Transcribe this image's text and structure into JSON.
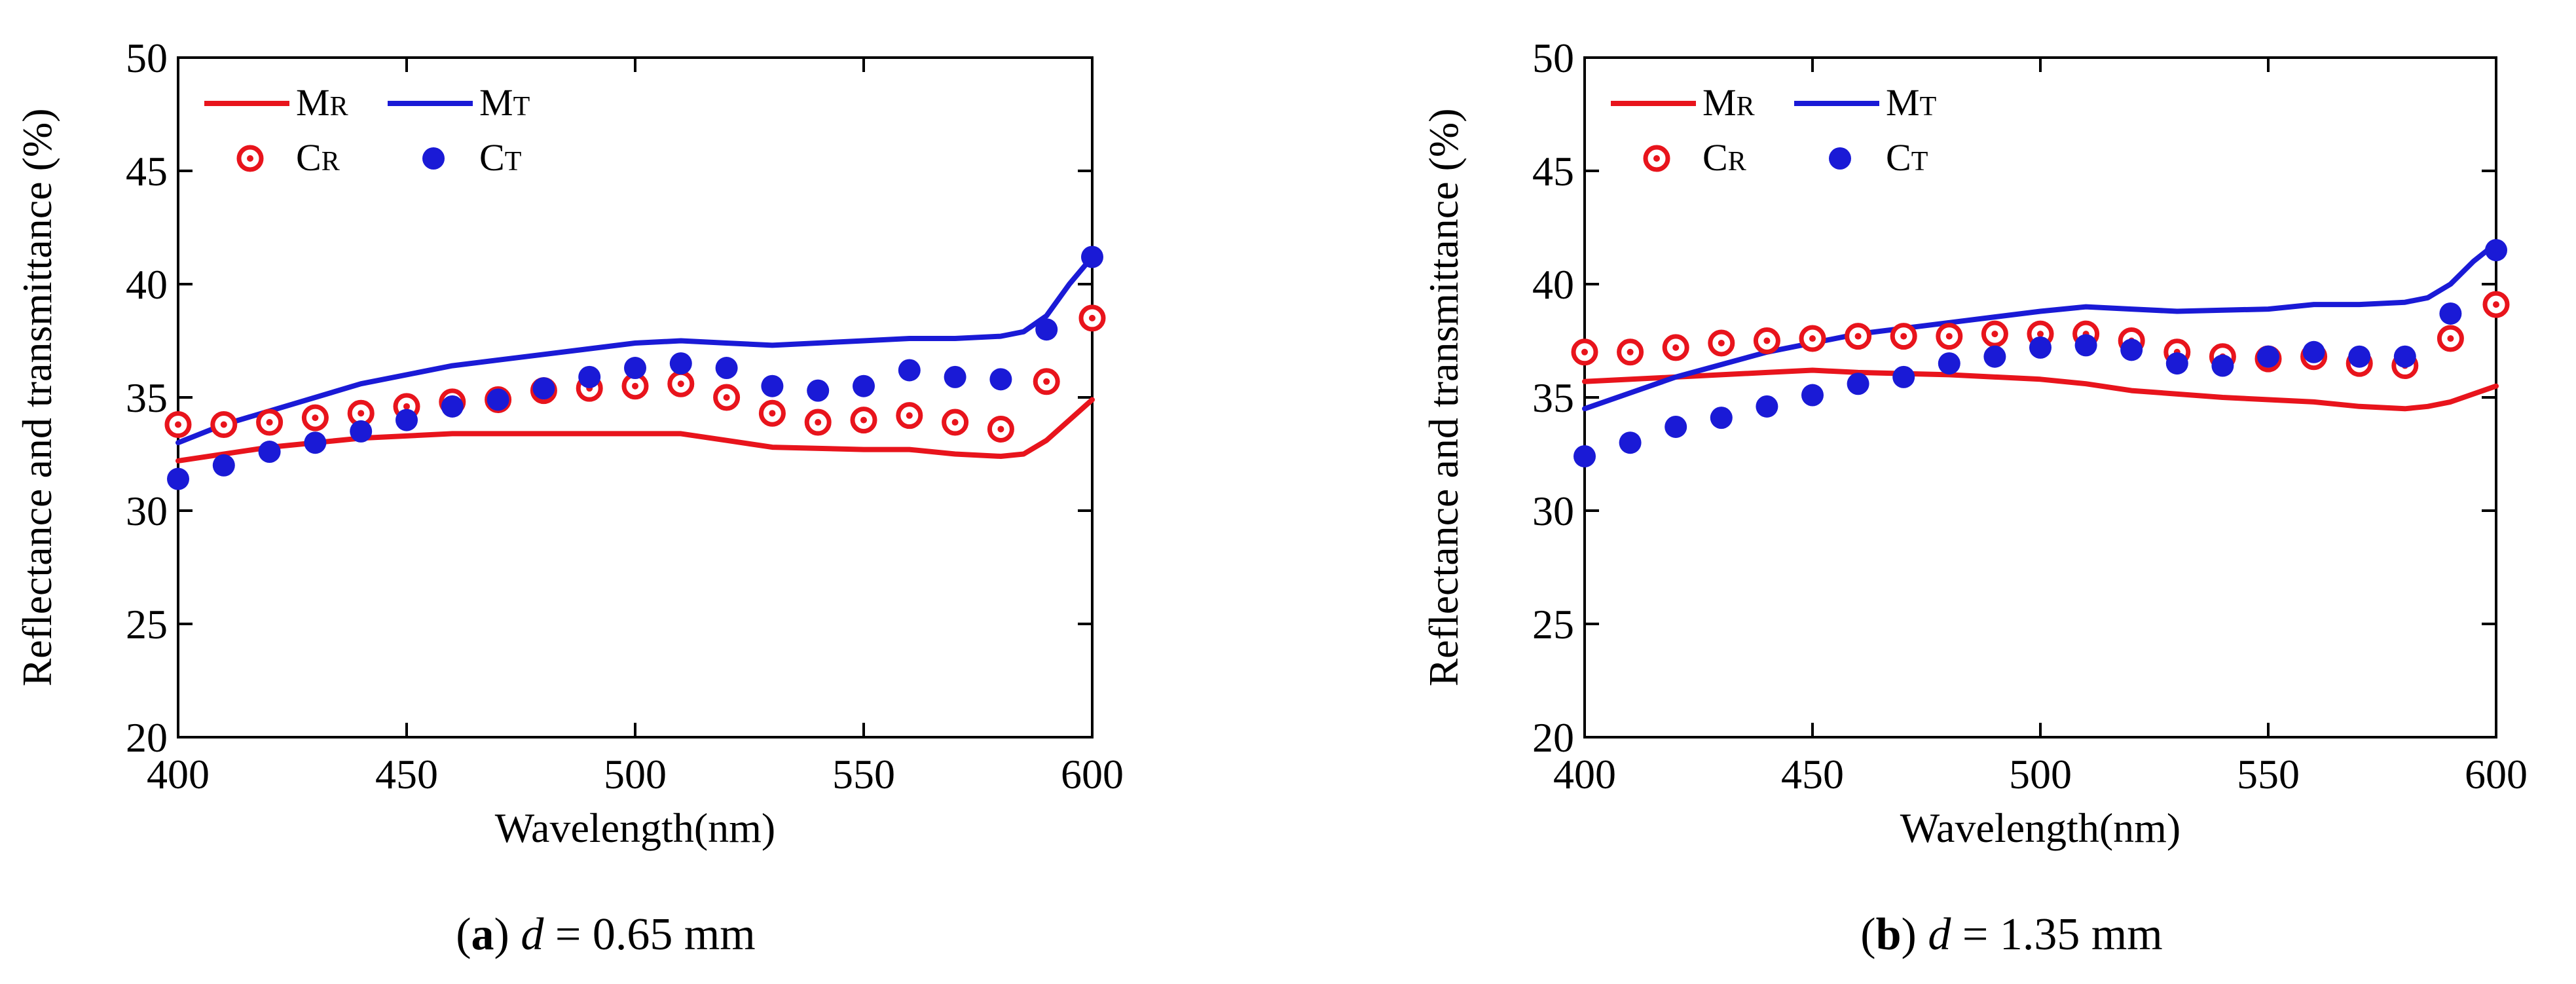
{
  "chart_data": [
    {
      "type": "line",
      "caption": {
        "label": "a",
        "variable": "d",
        "equals": " = ",
        "value": "0.65 mm"
      },
      "xlabel": "Wavelength(nm)",
      "ylabel": "Reflectance and transmittance (%)",
      "xlim": [
        400,
        600
      ],
      "ylim": [
        20,
        50
      ],
      "xticks": [
        400,
        450,
        500,
        550,
        600
      ],
      "yticks": [
        20,
        25,
        30,
        35,
        40,
        45,
        50
      ],
      "legend_position": "top-left",
      "series": [
        {
          "id": "MR",
          "main": "M",
          "sub": "R",
          "kind": "line",
          "color": "#e8141c",
          "x": [
            400,
            420,
            440,
            460,
            480,
            500,
            510,
            520,
            530,
            550,
            560,
            570,
            580,
            585,
            590,
            600
          ],
          "y": [
            32.2,
            32.8,
            33.2,
            33.4,
            33.4,
            33.4,
            33.4,
            33.1,
            32.8,
            32.7,
            32.7,
            32.5,
            32.4,
            32.5,
            33.1,
            34.9
          ]
        },
        {
          "id": "MT",
          "main": "M",
          "sub": "T",
          "kind": "line",
          "color": "#1a1ad6",
          "x": [
            400,
            410,
            420,
            440,
            460,
            480,
            500,
            510,
            520,
            530,
            550,
            560,
            570,
            580,
            585,
            590,
            595,
            600
          ],
          "y": [
            33.0,
            33.8,
            34.4,
            35.6,
            36.4,
            36.9,
            37.4,
            37.5,
            37.4,
            37.3,
            37.5,
            37.6,
            37.6,
            37.7,
            37.9,
            38.6,
            40.0,
            41.2
          ]
        },
        {
          "id": "CR",
          "main": "C",
          "sub": "R",
          "kind": "ring",
          "color": "#e8141c",
          "x": [
            400,
            410,
            420,
            430,
            440,
            450,
            460,
            470,
            480,
            490,
            500,
            510,
            520,
            530,
            540,
            550,
            560,
            570,
            580,
            590,
            600
          ],
          "y": [
            33.8,
            33.8,
            33.9,
            34.1,
            34.3,
            34.6,
            34.8,
            34.9,
            35.3,
            35.4,
            35.5,
            35.6,
            35.0,
            34.3,
            33.9,
            34.0,
            34.2,
            33.9,
            33.6,
            35.7,
            38.5
          ]
        },
        {
          "id": "CT",
          "main": "C",
          "sub": "T",
          "kind": "dot",
          "color": "#1a1ad6",
          "x": [
            400,
            410,
            420,
            430,
            440,
            450,
            460,
            470,
            480,
            490,
            500,
            510,
            520,
            530,
            540,
            550,
            560,
            570,
            580,
            590,
            600
          ],
          "y": [
            31.4,
            32.0,
            32.6,
            33.0,
            33.5,
            34.0,
            34.6,
            34.9,
            35.4,
            35.9,
            36.3,
            36.5,
            36.3,
            35.5,
            35.3,
            35.5,
            36.2,
            35.9,
            35.8,
            38.0,
            41.2
          ]
        }
      ]
    },
    {
      "type": "line",
      "caption": {
        "label": "b",
        "variable": "d",
        "equals": " = ",
        "value": "1.35 mm"
      },
      "xlabel": "Wavelength(nm)",
      "ylabel": "Reflectance and transmittance (%)",
      "xlim": [
        400,
        600
      ],
      "ylim": [
        20,
        50
      ],
      "xticks": [
        400,
        450,
        500,
        550,
        600
      ],
      "yticks": [
        20,
        25,
        30,
        35,
        40,
        45,
        50
      ],
      "legend_position": "top-left",
      "series": [
        {
          "id": "MR",
          "main": "M",
          "sub": "R",
          "kind": "line",
          "color": "#e8141c",
          "x": [
            400,
            420,
            440,
            450,
            460,
            480,
            500,
            510,
            520,
            540,
            560,
            570,
            580,
            585,
            590,
            600
          ],
          "y": [
            35.7,
            35.9,
            36.1,
            36.2,
            36.1,
            36.0,
            35.8,
            35.6,
            35.3,
            35.0,
            34.8,
            34.6,
            34.5,
            34.6,
            34.8,
            35.5
          ]
        },
        {
          "id": "MT",
          "main": "M",
          "sub": "T",
          "kind": "line",
          "color": "#1a1ad6",
          "x": [
            400,
            410,
            420,
            440,
            460,
            480,
            500,
            510,
            520,
            530,
            550,
            560,
            570,
            580,
            585,
            590,
            595,
            600
          ],
          "y": [
            34.5,
            35.2,
            35.9,
            37.0,
            37.8,
            38.3,
            38.8,
            39.0,
            38.9,
            38.8,
            38.9,
            39.1,
            39.1,
            39.2,
            39.4,
            40.0,
            41.0,
            41.8
          ]
        },
        {
          "id": "CR",
          "main": "C",
          "sub": "R",
          "kind": "ring",
          "color": "#e8141c",
          "x": [
            400,
            410,
            420,
            430,
            440,
            450,
            460,
            470,
            480,
            490,
            500,
            510,
            520,
            530,
            540,
            550,
            560,
            570,
            580,
            590,
            600
          ],
          "y": [
            37.0,
            37.0,
            37.2,
            37.4,
            37.5,
            37.6,
            37.7,
            37.7,
            37.7,
            37.8,
            37.8,
            37.8,
            37.5,
            37.0,
            36.8,
            36.7,
            36.8,
            36.5,
            36.4,
            37.6,
            39.1
          ]
        },
        {
          "id": "CT",
          "main": "C",
          "sub": "T",
          "kind": "dot",
          "color": "#1a1ad6",
          "x": [
            400,
            410,
            420,
            430,
            440,
            450,
            460,
            470,
            480,
            490,
            500,
            510,
            520,
            530,
            540,
            550,
            560,
            570,
            580,
            590,
            600
          ],
          "y": [
            32.4,
            33.0,
            33.7,
            34.1,
            34.6,
            35.1,
            35.6,
            35.9,
            36.5,
            36.8,
            37.2,
            37.3,
            37.1,
            36.5,
            36.4,
            36.8,
            37.0,
            36.8,
            36.8,
            38.7,
            41.5
          ]
        }
      ]
    }
  ]
}
